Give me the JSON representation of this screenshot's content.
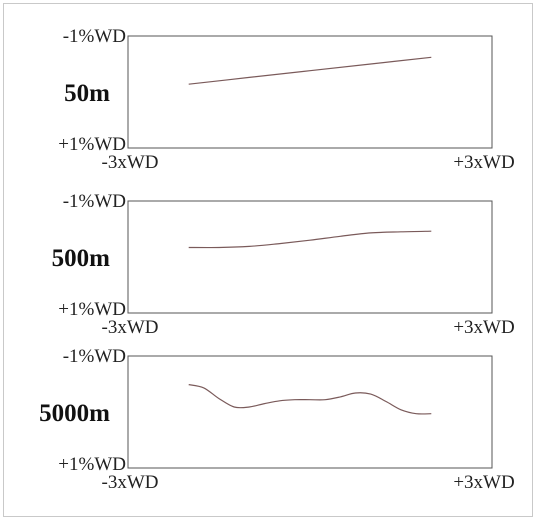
{
  "colors": {
    "frame_border": "#c9c9c9",
    "axis": "#555555",
    "line": "#7a5a5a"
  },
  "chart_data": [
    {
      "type": "line",
      "title": "50m",
      "x_ticks": [
        "-3xWD",
        "+3xWD"
      ],
      "y_ticks": [
        "-1%WD",
        "+1%WD"
      ],
      "xlim": [
        -3,
        3
      ],
      "ylim": [
        -1,
        1
      ],
      "y_inverted": true,
      "grid": false,
      "series": [
        {
          "x": [
            -2,
            -1,
            0,
            1,
            2
          ],
          "y": [
            -0.14,
            -0.26,
            -0.38,
            -0.5,
            -0.62
          ]
        }
      ]
    },
    {
      "type": "line",
      "title": "500m",
      "x_ticks": [
        "-3xWD",
        "+3xWD"
      ],
      "y_ticks": [
        "-1%WD",
        "+1%WD"
      ],
      "xlim": [
        -3,
        3
      ],
      "ylim": [
        -1,
        1
      ],
      "y_inverted": true,
      "grid": false,
      "series": [
        {
          "x": [
            -2,
            -1.5,
            -1,
            -0.5,
            0,
            0.5,
            1,
            1.5,
            2
          ],
          "y": [
            -0.17,
            -0.17,
            -0.19,
            -0.24,
            -0.3,
            -0.37,
            -0.43,
            -0.45,
            -0.46
          ]
        }
      ]
    },
    {
      "type": "line",
      "title": "5000m",
      "x_ticks": [
        "-3xWD",
        "+3xWD"
      ],
      "y_ticks": [
        "-1%WD",
        "+1%WD"
      ],
      "xlim": [
        -3,
        3
      ],
      "ylim": [
        -1,
        1
      ],
      "y_inverted": true,
      "grid": false,
      "series": [
        {
          "x": [
            -2,
            -1.75,
            -1.5,
            -1.25,
            -1,
            -0.75,
            -0.5,
            -0.25,
            0,
            0.25,
            0.5,
            0.75,
            1,
            1.25,
            1.5,
            1.75,
            2
          ],
          "y": [
            -0.49,
            -0.43,
            -0.24,
            -0.09,
            -0.09,
            -0.15,
            -0.2,
            -0.22,
            -0.22,
            -0.22,
            -0.27,
            -0.34,
            -0.32,
            -0.19,
            -0.04,
            0.03,
            0.03
          ]
        }
      ]
    }
  ]
}
